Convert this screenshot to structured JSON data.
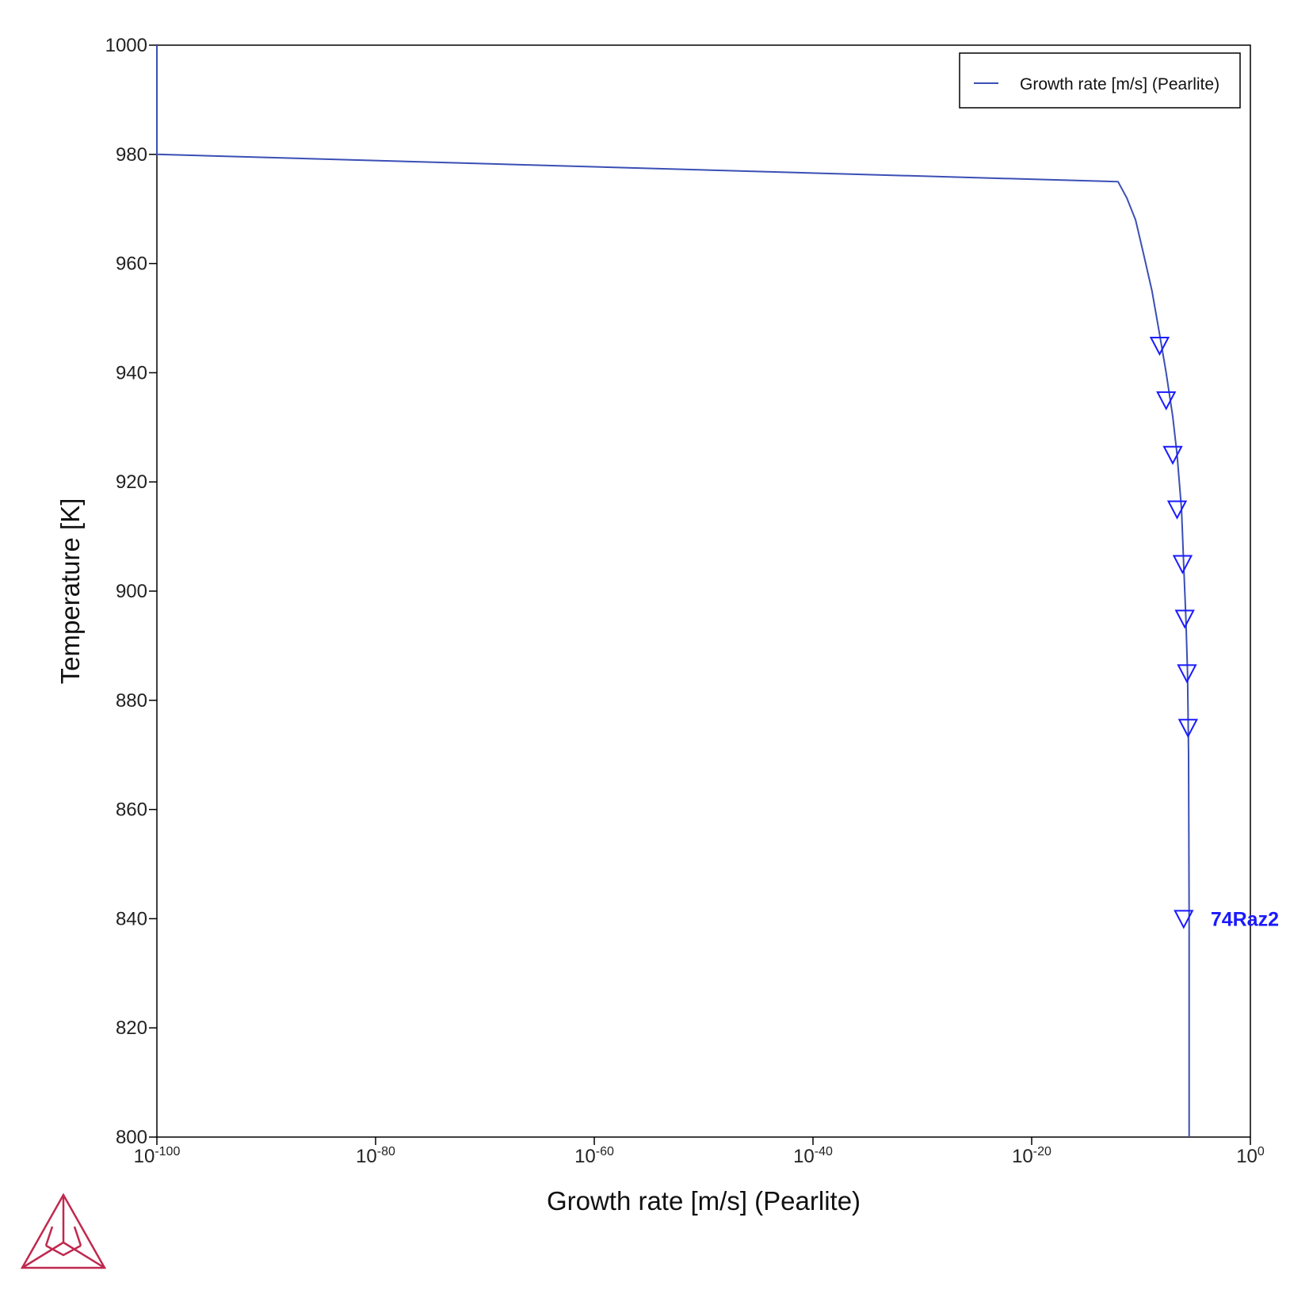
{
  "chart_data": {
    "type": "line",
    "xlabel": "Growth rate [m/s] (Pearlite)",
    "ylabel": "Temperature [K]",
    "xscale": "log",
    "xlim_exp": [
      -100,
      0
    ],
    "ylim": [
      800,
      1000
    ],
    "x_ticks": [
      {
        "base": "10",
        "exp": "-100",
        "value_exp": -100
      },
      {
        "base": "10",
        "exp": "-80",
        "value_exp": -80
      },
      {
        "base": "10",
        "exp": "-60",
        "value_exp": -60
      },
      {
        "base": "10",
        "exp": "-40",
        "value_exp": -40
      },
      {
        "base": "10",
        "exp": "-20",
        "value_exp": -20
      },
      {
        "base": "10",
        "exp": "0",
        "value_exp": 0
      }
    ],
    "y_ticks": [
      "800",
      "820",
      "840",
      "860",
      "880",
      "900",
      "920",
      "940",
      "960",
      "980",
      "1000"
    ],
    "grid": false,
    "legend_position": "top-right",
    "series": [
      {
        "name": "Growth rate [m/s] (Pearlite)",
        "color": "#3a4fb5",
        "log10_x": [
          -100,
          -100,
          -12.1,
          -11.3,
          -10.5,
          -9.8,
          -9.0,
          -8.3,
          -7.7,
          -7.1,
          -6.7,
          -6.3,
          -6.1,
          -5.9,
          -5.75,
          -5.65,
          -5.6,
          -5.6
        ],
        "y": [
          1000,
          980,
          975,
          972,
          968,
          962,
          955,
          947,
          940,
          932,
          925,
          915,
          905,
          895,
          885,
          870,
          840,
          800
        ]
      }
    ],
    "experimental": {
      "label": "74Raz2",
      "color": "#1a1aff",
      "marker": "triangle-down",
      "log10_x": [
        -8.3,
        -7.7,
        -7.1,
        -6.7,
        -6.2,
        -6.0,
        -5.8,
        -5.7,
        -6.1
      ],
      "y": [
        945,
        935,
        925,
        915,
        905,
        895,
        885,
        875,
        840
      ]
    }
  },
  "logo": {
    "name": "thermo-calc-logo",
    "color": "#c0294f"
  }
}
